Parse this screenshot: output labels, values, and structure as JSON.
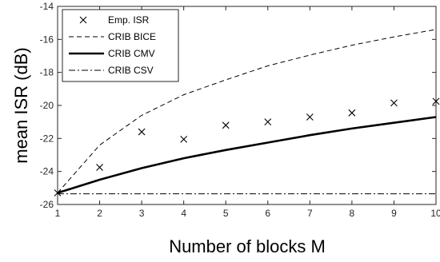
{
  "chart_data": {
    "type": "line",
    "title": "",
    "xlabel": "Number of blocks M",
    "ylabel": "mean ISR (dB)",
    "xlim": [
      1,
      10
    ],
    "ylim": [
      -26,
      -14
    ],
    "x_ticks": [
      1,
      2,
      3,
      4,
      5,
      6,
      7,
      8,
      9,
      10
    ],
    "y_ticks": [
      -26,
      -24,
      -22,
      -20,
      -18,
      -16,
      -14
    ],
    "grid": false,
    "legend_position": "top-left",
    "x": [
      1,
      2,
      3,
      4,
      5,
      6,
      7,
      8,
      9,
      10
    ],
    "series": [
      {
        "name": "Emp. ISR",
        "style": "markers-x",
        "color": "#000000",
        "values": [
          -25.3,
          -23.75,
          -21.6,
          -22.05,
          -21.2,
          -21.0,
          -20.7,
          -20.45,
          -19.85,
          -19.75
        ]
      },
      {
        "name": "CRIB BICE",
        "style": "dashed",
        "color": "#000000",
        "values": [
          -25.3,
          -22.4,
          -20.6,
          -19.35,
          -18.45,
          -17.6,
          -16.95,
          -16.35,
          -15.85,
          -15.4
        ]
      },
      {
        "name": "CRIB CMV",
        "style": "solid-thick",
        "color": "#000000",
        "values": [
          -25.3,
          -24.5,
          -23.8,
          -23.2,
          -22.7,
          -22.25,
          -21.8,
          -21.4,
          -21.05,
          -20.7
        ]
      },
      {
        "name": "CRIB CSV",
        "style": "dashdot",
        "color": "#000000",
        "values": [
          -25.35,
          -25.35,
          -25.35,
          -25.35,
          -25.35,
          -25.35,
          -25.35,
          -25.35,
          -25.35,
          -25.35
        ]
      }
    ]
  }
}
